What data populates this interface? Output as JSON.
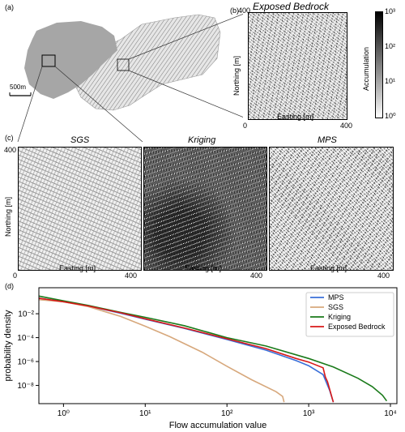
{
  "panel_a": {
    "label": "(a)",
    "scalebar": "500m"
  },
  "panel_b": {
    "label": "(b)",
    "title": "Exposed Bedrock",
    "xlabel": "Easting [m]",
    "ylabel": "Northing [m]",
    "x_ticks": [
      "0",
      "400"
    ],
    "y_ticks": [
      "400",
      "0"
    ],
    "colorbar": {
      "label": "Accumulation",
      "ticks": [
        "10⁰",
        "10¹",
        "10²",
        "10³"
      ]
    }
  },
  "panel_c": {
    "label": "(c)",
    "ylabel": "Northing [m]",
    "y_ticks": [
      "400",
      "0"
    ],
    "panels": [
      {
        "title": "SGS",
        "xlabel": "Easting [m]",
        "x_end": "400",
        "x_start": "0"
      },
      {
        "title": "Kriging",
        "xlabel": "Easting [m]",
        "x_end": "400",
        "x_start": "0"
      },
      {
        "title": "MPS",
        "xlabel": "Easting [m]",
        "x_end": "400",
        "x_start": "0"
      }
    ]
  },
  "panel_d": {
    "label": "(d)"
  },
  "chart_data": {
    "type": "line",
    "xlabel": "Flow accumulation value",
    "ylabel": "probability density",
    "x_scale": "log",
    "y_scale": "log",
    "xlim": [
      0.5,
      12000
    ],
    "ylim": [
      3e-10,
      1.5
    ],
    "x_tick_values": [
      1,
      10,
      100,
      1000,
      10000
    ],
    "x_tick_labels": [
      "10⁰",
      "10¹",
      "10²",
      "10³",
      "10⁴"
    ],
    "y_tick_values": [
      0.01,
      0.0001,
      1e-06,
      1e-08
    ],
    "y_tick_labels": [
      "10⁻²",
      "10⁻⁴",
      "10⁻⁶",
      "10⁻⁸"
    ],
    "legend_position": "top-right",
    "series": [
      {
        "name": "MPS",
        "color": "#3a6fd8",
        "x": [
          0.5,
          1,
          2,
          5,
          10,
          30,
          100,
          300,
          700,
          1000,
          1500,
          1800,
          2000
        ],
        "y": [
          0.2,
          0.1,
          0.045,
          0.011,
          0.0035,
          0.0006,
          7e-05,
          9e-06,
          1.2e-06,
          4.5e-07,
          8e-08,
          4e-09,
          4e-10
        ]
      },
      {
        "name": "SGS",
        "color": "#d7a87c",
        "x": [
          0.5,
          1,
          2,
          5,
          10,
          20,
          50,
          100,
          200,
          400,
          480,
          500
        ],
        "y": [
          0.15,
          0.1,
          0.04,
          0.006,
          0.0009,
          0.00012,
          6e-06,
          4e-07,
          3e-08,
          3e-09,
          1.2e-09,
          4e-10
        ]
      },
      {
        "name": "Kriging",
        "color": "#1a7a1a",
        "x": [
          0.5,
          1,
          2,
          5,
          10,
          30,
          100,
          300,
          1000,
          2000,
          4000,
          6000,
          8000,
          9000
        ],
        "y": [
          0.3,
          0.12,
          0.05,
          0.013,
          0.005,
          0.001,
          0.0001,
          2e-05,
          1.8e-06,
          3.5e-07,
          4e-08,
          8e-09,
          1.5e-09,
          5e-10
        ]
      },
      {
        "name": "Exposed Bedrock",
        "color": "#d81818",
        "x": [
          0.5,
          1,
          2,
          5,
          10,
          30,
          100,
          300,
          700,
          1000,
          1500,
          1600,
          1700,
          2000
        ],
        "y": [
          0.2,
          0.1,
          0.045,
          0.012,
          0.0038,
          0.00065,
          8e-05,
          1.2e-05,
          1.8e-06,
          9e-07,
          3e-07,
          5e-08,
          2e-08,
          4e-10
        ]
      }
    ]
  }
}
